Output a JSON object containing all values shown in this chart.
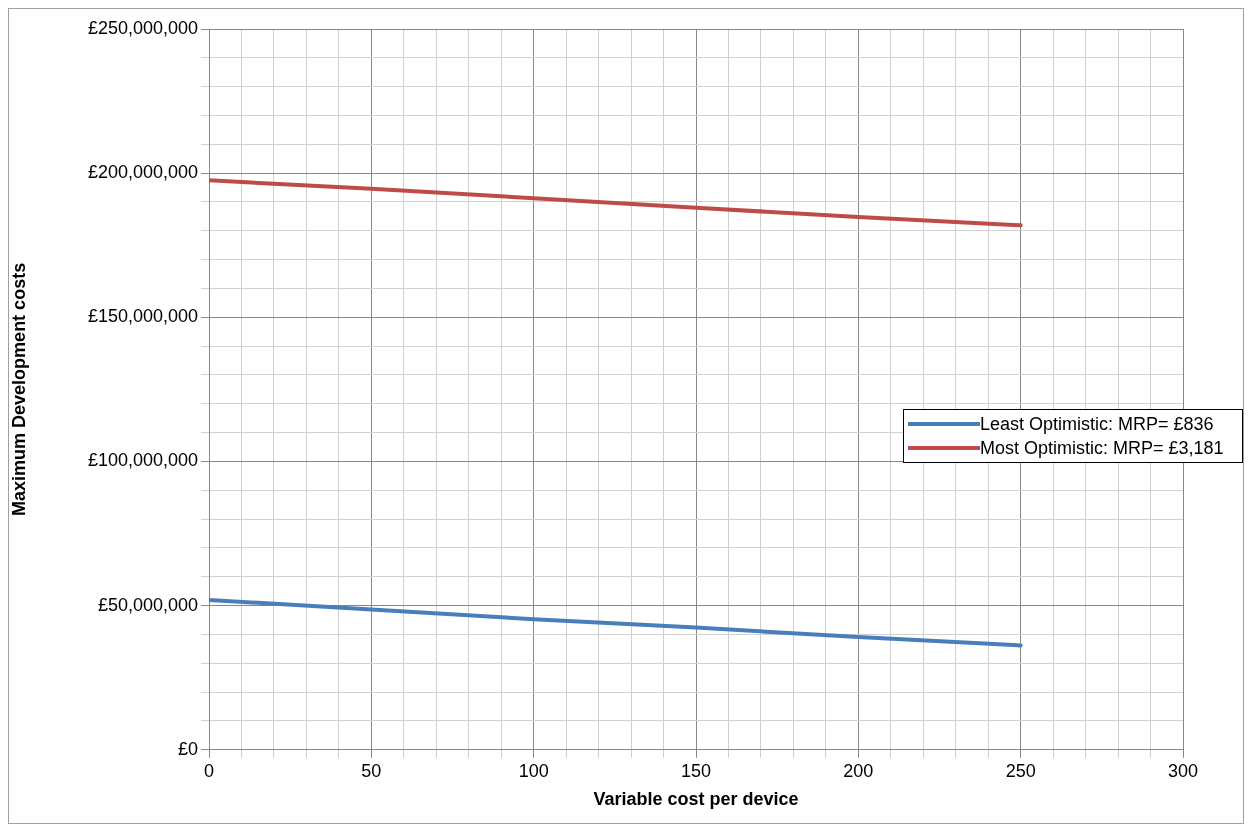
{
  "chart_data": {
    "type": "line",
    "xlabel": "Variable cost per device",
    "ylabel": "Maximum Development costs",
    "x": [
      0,
      50,
      100,
      150,
      200,
      250
    ],
    "series": [
      {
        "name": "Least Optimistic: MRP= £836",
        "color": "#4a7ebb",
        "values": [
          52000000,
          48700000,
          45300000,
          42400000,
          39100000,
          36200000
        ]
      },
      {
        "name": "Most Optimistic: MRP= £3,181",
        "color": "#be4b48",
        "values": [
          197500000,
          194600000,
          191300000,
          188000000,
          184800000,
          181900000
        ]
      }
    ],
    "xlim": [
      0,
      300
    ],
    "xticks": [
      0,
      {
        "value": 10,
        "label": null
      },
      {
        "value": 20,
        "label": null
      },
      {
        "value": 30,
        "label": null
      },
      {
        "value": 40,
        "label": null
      },
      50,
      {
        "value": 60,
        "label": null
      },
      {
        "value": 70,
        "label": null
      },
      {
        "value": 80,
        "label": null
      },
      {
        "value": 90,
        "label": null
      },
      100,
      {
        "value": 110,
        "label": null
      },
      {
        "value": 120,
        "label": null
      },
      {
        "value": 130,
        "label": null
      },
      {
        "value": 140,
        "label": null
      },
      150,
      {
        "value": 160,
        "label": null
      },
      {
        "value": 170,
        "label": null
      },
      {
        "value": 180,
        "label": null
      },
      {
        "value": 190,
        "label": null
      },
      200,
      {
        "value": 210,
        "label": null
      },
      {
        "value": 220,
        "label": null
      },
      {
        "value": 230,
        "label": null
      },
      {
        "value": 240,
        "label": null
      },
      250,
      {
        "value": 260,
        "label": null
      },
      {
        "value": 270,
        "label": null
      },
      {
        "value": 280,
        "label": null
      },
      {
        "value": 290,
        "label": null
      },
      300
    ],
    "ylim": [
      0,
      250000000
    ],
    "yticks": [
      {
        "value": 0,
        "label": "£0"
      },
      {
        "value": 10000000,
        "label": null
      },
      {
        "value": 20000000,
        "label": null
      },
      {
        "value": 30000000,
        "label": null
      },
      {
        "value": 40000000,
        "label": null
      },
      {
        "value": 50000000,
        "label": "£50,000,000"
      },
      {
        "value": 60000000,
        "label": null
      },
      {
        "value": 70000000,
        "label": null
      },
      {
        "value": 80000000,
        "label": null
      },
      {
        "value": 90000000,
        "label": null
      },
      {
        "value": 100000000,
        "label": "£100,000,000"
      },
      {
        "value": 110000000,
        "label": null
      },
      {
        "value": 120000000,
        "label": null
      },
      {
        "value": 130000000,
        "label": null
      },
      {
        "value": 140000000,
        "label": null
      },
      {
        "value": 150000000,
        "label": "£150,000,000"
      },
      {
        "value": 160000000,
        "label": null
      },
      {
        "value": 170000000,
        "label": null
      },
      {
        "value": 180000000,
        "label": null
      },
      {
        "value": 190000000,
        "label": null
      },
      {
        "value": 200000000,
        "label": "£200,000,000"
      },
      {
        "value": 210000000,
        "label": null
      },
      {
        "value": 220000000,
        "label": null
      },
      {
        "value": 230000000,
        "label": null
      },
      {
        "value": 240000000,
        "label": null
      },
      {
        "value": 250000000,
        "label": "£250,000,000"
      }
    ],
    "grid": true,
    "legend": "right",
    "marker": "none",
    "line_style": "solid"
  }
}
